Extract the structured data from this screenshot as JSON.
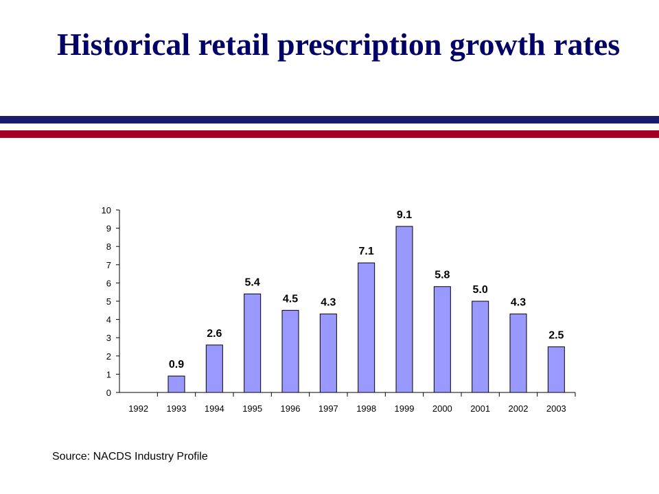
{
  "slide": {
    "title": "Historical retail prescription growth rates",
    "source": "Source: NACDS Industry Profile"
  },
  "colors": {
    "title": "#000066",
    "rule_blue": "#1A1A6E",
    "rule_red": "#A50021",
    "bar_fill": "#9999FF",
    "bar_stroke": "#000000"
  },
  "chart_data": {
    "type": "bar",
    "title": "",
    "xlabel": "",
    "ylabel": "",
    "categories": [
      "1992",
      "1993",
      "1994",
      "1995",
      "1996",
      "1997",
      "1998",
      "1999",
      "2000",
      "2001",
      "2002",
      "2003"
    ],
    "values": [
      null,
      0.9,
      2.6,
      5.4,
      4.5,
      4.3,
      7.1,
      9.1,
      5.8,
      5.0,
      4.3,
      2.5
    ],
    "data_labels": [
      "",
      "0.9",
      "2.6",
      "5.4",
      "4.5",
      "4.3",
      "7.1",
      "9.1",
      "5.8",
      "5.0",
      "4.3",
      "2.5"
    ],
    "ylim": [
      0,
      10
    ],
    "yticks": [
      "0",
      "1",
      "2",
      "3",
      "4",
      "5",
      "6",
      "7",
      "8",
      "9",
      "10"
    ],
    "grid": false,
    "legend": "none"
  }
}
